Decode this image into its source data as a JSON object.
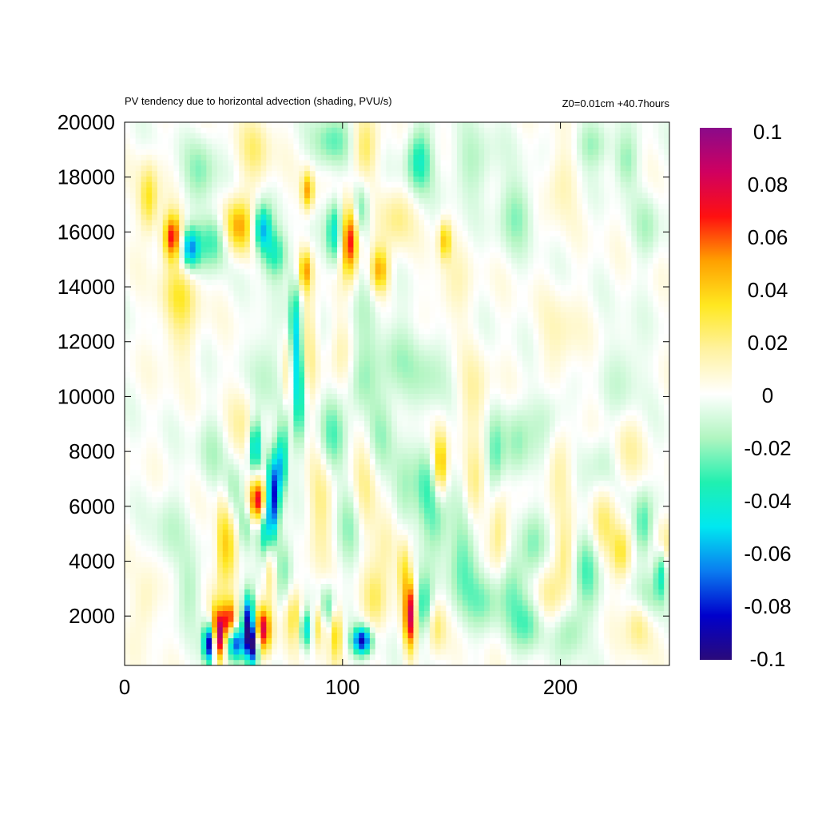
{
  "chart_data": {
    "type": "heatmap",
    "title": "PV tendency due to horizontal advection (shading, PVU/s)",
    "subtitle": "Z0=0.01cm   +40.7hours",
    "xlabel": "",
    "ylabel": "",
    "xlim": [
      0,
      250
    ],
    "ylim": [
      200,
      20000
    ],
    "x_ticks": [
      "0",
      "100",
      "200"
    ],
    "y_ticks": [
      "2000",
      "4000",
      "6000",
      "8000",
      "10000",
      "12000",
      "14000",
      "16000",
      "18000",
      "20000"
    ],
    "colorbar": {
      "range": [
        -0.1,
        0.1
      ],
      "ticks": [
        "0.1",
        "0.08",
        "0.06",
        "0.04",
        "0.02",
        "0",
        "-0.02",
        "-0.04",
        "-0.06",
        "-0.08",
        "-0.1"
      ],
      "colors": [
        "#2a0a7a",
        "#0000cc",
        "#0a7cf0",
        "#00e8f0",
        "#20f0b0",
        "#b0f5c0",
        "#ffffff",
        "#fff2a0",
        "#ffe820",
        "#ffa000",
        "#ff1010",
        "#d00060",
        "#8a0a8a"
      ]
    },
    "grid": "off",
    "features": [
      {
        "x": 11,
        "y": 17200,
        "value": 0.035,
        "sx": 3,
        "sy": 900
      },
      {
        "x": 22,
        "y": 15800,
        "value": 0.07,
        "sx": 3,
        "sy": 600
      },
      {
        "x": 30,
        "y": 15400,
        "value": -0.06,
        "sx": 3,
        "sy": 500
      },
      {
        "x": 41,
        "y": 15700,
        "value": -0.035,
        "sx": 5,
        "sy": 700
      },
      {
        "x": 52,
        "y": 16200,
        "value": 0.05,
        "sx": 5,
        "sy": 700
      },
      {
        "x": 63,
        "y": 16100,
        "value": -0.06,
        "sx": 3,
        "sy": 600
      },
      {
        "x": 69,
        "y": 15200,
        "value": -0.035,
        "sx": 4,
        "sy": 600
      },
      {
        "x": 84,
        "y": 17500,
        "value": 0.05,
        "sx": 2,
        "sy": 500
      },
      {
        "x": 83,
        "y": 14600,
        "value": 0.045,
        "sx": 2,
        "sy": 500
      },
      {
        "x": 97,
        "y": 16000,
        "value": -0.05,
        "sx": 3,
        "sy": 800
      },
      {
        "x": 103,
        "y": 15700,
        "value": 0.08,
        "sx": 3,
        "sy": 900
      },
      {
        "x": 108,
        "y": 16800,
        "value": -0.03,
        "sx": 3,
        "sy": 700
      },
      {
        "x": 117,
        "y": 14600,
        "value": 0.05,
        "sx": 3,
        "sy": 600
      },
      {
        "x": 135,
        "y": 18600,
        "value": -0.04,
        "sx": 4,
        "sy": 800
      },
      {
        "x": 147,
        "y": 15700,
        "value": 0.04,
        "sx": 2,
        "sy": 500
      },
      {
        "x": 125,
        "y": 16500,
        "value": 0.02,
        "sx": 5,
        "sy": 800
      },
      {
        "x": 60,
        "y": 19000,
        "value": 0.02,
        "sx": 5,
        "sy": 900
      },
      {
        "x": 95,
        "y": 19300,
        "value": -0.025,
        "sx": 6,
        "sy": 700
      },
      {
        "x": 110,
        "y": 19000,
        "value": 0.025,
        "sx": 4,
        "sy": 800
      },
      {
        "x": 160,
        "y": 18500,
        "value": -0.015,
        "sx": 8,
        "sy": 900
      },
      {
        "x": 180,
        "y": 16700,
        "value": -0.02,
        "sx": 6,
        "sy": 900
      },
      {
        "x": 200,
        "y": 17800,
        "value": 0.015,
        "sx": 5,
        "sy": 900
      },
      {
        "x": 230,
        "y": 18600,
        "value": -0.02,
        "sx": 4,
        "sy": 700
      },
      {
        "x": 240,
        "y": 16200,
        "value": -0.015,
        "sx": 4,
        "sy": 900
      },
      {
        "x": 215,
        "y": 19200,
        "value": -0.02,
        "sx": 6,
        "sy": 600
      },
      {
        "x": 35,
        "y": 18200,
        "value": -0.02,
        "sx": 5,
        "sy": 900
      },
      {
        "x": 80,
        "y": 10500,
        "value": -0.05,
        "sx": 2,
        "sy": 1500
      },
      {
        "x": 78,
        "y": 12500,
        "value": -0.04,
        "sx": 2,
        "sy": 1300
      },
      {
        "x": 75,
        "y": 10000,
        "value": 0.03,
        "sx": 2,
        "sy": 1600
      },
      {
        "x": 84,
        "y": 12000,
        "value": 0.02,
        "sx": 3,
        "sy": 1500
      },
      {
        "x": 74,
        "y": 8800,
        "value": -0.03,
        "sx": 2,
        "sy": 900
      },
      {
        "x": 60,
        "y": 8200,
        "value": -0.055,
        "sx": 2,
        "sy": 700
      },
      {
        "x": 61,
        "y": 6200,
        "value": 0.085,
        "sx": 3,
        "sy": 600
      },
      {
        "x": 68,
        "y": 6300,
        "value": -0.085,
        "sx": 2,
        "sy": 1100
      },
      {
        "x": 72,
        "y": 7500,
        "value": -0.05,
        "sx": 2,
        "sy": 800
      },
      {
        "x": 64,
        "y": 5200,
        "value": -0.045,
        "sx": 2,
        "sy": 700
      },
      {
        "x": 56,
        "y": 5400,
        "value": -0.03,
        "sx": 3,
        "sy": 700
      },
      {
        "x": 50,
        "y": 6500,
        "value": -0.02,
        "sx": 3,
        "sy": 800
      },
      {
        "x": 45,
        "y": 4600,
        "value": 0.04,
        "sx": 2,
        "sy": 1200
      },
      {
        "x": 49,
        "y": 4400,
        "value": 0.03,
        "sx": 2,
        "sy": 1000
      },
      {
        "x": 42,
        "y": 1500,
        "value": 0.055,
        "sx": 2,
        "sy": 700
      },
      {
        "x": 39,
        "y": 1000,
        "value": -0.1,
        "sx": 2,
        "sy": 500
      },
      {
        "x": 44,
        "y": 1200,
        "value": 0.06,
        "sx": 2,
        "sy": 600
      },
      {
        "x": 48,
        "y": 1900,
        "value": 0.065,
        "sx": 2,
        "sy": 500
      },
      {
        "x": 51,
        "y": 1000,
        "value": -0.07,
        "sx": 3,
        "sy": 400
      },
      {
        "x": 57,
        "y": 1800,
        "value": -0.1,
        "sx": 2,
        "sy": 700
      },
      {
        "x": 63,
        "y": 1500,
        "value": 0.08,
        "sx": 3,
        "sy": 600
      },
      {
        "x": 59,
        "y": 900,
        "value": -0.09,
        "sx": 2,
        "sy": 500
      },
      {
        "x": 67,
        "y": 3500,
        "value": 0.03,
        "sx": 2,
        "sy": 800
      },
      {
        "x": 73,
        "y": 3800,
        "value": -0.025,
        "sx": 3,
        "sy": 900
      },
      {
        "x": 78,
        "y": 2000,
        "value": 0.03,
        "sx": 3,
        "sy": 700
      },
      {
        "x": 83,
        "y": 1500,
        "value": -0.05,
        "sx": 2,
        "sy": 500
      },
      {
        "x": 89,
        "y": 1700,
        "value": 0.035,
        "sx": 2,
        "sy": 600
      },
      {
        "x": 97,
        "y": 1400,
        "value": 0.04,
        "sx": 2,
        "sy": 700
      },
      {
        "x": 93,
        "y": 2300,
        "value": -0.03,
        "sx": 3,
        "sy": 600
      },
      {
        "x": 109,
        "y": 1100,
        "value": -0.085,
        "sx": 3,
        "sy": 350
      },
      {
        "x": 115,
        "y": 2600,
        "value": 0.02,
        "sx": 4,
        "sy": 800
      },
      {
        "x": 131,
        "y": 2000,
        "value": 0.08,
        "sx": 2,
        "sy": 900
      },
      {
        "x": 128,
        "y": 3700,
        "value": 0.03,
        "sx": 2,
        "sy": 800
      },
      {
        "x": 137,
        "y": 2300,
        "value": -0.035,
        "sx": 3,
        "sy": 800
      },
      {
        "x": 143,
        "y": 1600,
        "value": 0.025,
        "sx": 3,
        "sy": 700
      },
      {
        "x": 145,
        "y": 7500,
        "value": 0.045,
        "sx": 2,
        "sy": 800
      },
      {
        "x": 143,
        "y": 5500,
        "value": -0.025,
        "sx": 4,
        "sy": 1000
      },
      {
        "x": 138,
        "y": 6800,
        "value": -0.02,
        "sx": 3,
        "sy": 1000
      },
      {
        "x": 128,
        "y": 6300,
        "value": -0.02,
        "sx": 4,
        "sy": 1200
      },
      {
        "x": 110,
        "y": 7000,
        "value": 0.02,
        "sx": 4,
        "sy": 1500
      },
      {
        "x": 104,
        "y": 5500,
        "value": -0.02,
        "sx": 4,
        "sy": 1200
      },
      {
        "x": 95,
        "y": 8500,
        "value": -0.025,
        "sx": 4,
        "sy": 1000
      },
      {
        "x": 90,
        "y": 6000,
        "value": 0.02,
        "sx": 4,
        "sy": 1300
      },
      {
        "x": 118,
        "y": 8800,
        "value": -0.02,
        "sx": 5,
        "sy": 1000
      },
      {
        "x": 120,
        "y": 4500,
        "value": 0.02,
        "sx": 4,
        "sy": 900
      },
      {
        "x": 155,
        "y": 4000,
        "value": -0.025,
        "sx": 5,
        "sy": 1300
      },
      {
        "x": 160,
        "y": 6600,
        "value": 0.02,
        "sx": 3,
        "sy": 1000
      },
      {
        "x": 165,
        "y": 2600,
        "value": -0.02,
        "sx": 5,
        "sy": 800
      },
      {
        "x": 172,
        "y": 5200,
        "value": 0.025,
        "sx": 3,
        "sy": 1100
      },
      {
        "x": 178,
        "y": 3000,
        "value": -0.02,
        "sx": 5,
        "sy": 900
      },
      {
        "x": 185,
        "y": 1700,
        "value": -0.025,
        "sx": 5,
        "sy": 700
      },
      {
        "x": 187,
        "y": 4600,
        "value": -0.02,
        "sx": 4,
        "sy": 900
      },
      {
        "x": 195,
        "y": 2800,
        "value": 0.02,
        "sx": 4,
        "sy": 800
      },
      {
        "x": 202,
        "y": 4200,
        "value": 0.02,
        "sx": 3,
        "sy": 900
      },
      {
        "x": 205,
        "y": 1500,
        "value": -0.02,
        "sx": 5,
        "sy": 700
      },
      {
        "x": 212,
        "y": 3600,
        "value": -0.025,
        "sx": 4,
        "sy": 1000
      },
      {
        "x": 220,
        "y": 5500,
        "value": 0.02,
        "sx": 4,
        "sy": 900
      },
      {
        "x": 228,
        "y": 4300,
        "value": 0.03,
        "sx": 3,
        "sy": 700
      },
      {
        "x": 236,
        "y": 1700,
        "value": 0.025,
        "sx": 4,
        "sy": 700
      },
      {
        "x": 240,
        "y": 2700,
        "value": -0.02,
        "sx": 4,
        "sy": 700
      },
      {
        "x": 238,
        "y": 5300,
        "value": -0.03,
        "sx": 3,
        "sy": 900
      },
      {
        "x": 246,
        "y": 3600,
        "value": -0.04,
        "sx": 2,
        "sy": 700
      },
      {
        "x": 248,
        "y": 4700,
        "value": 0.025,
        "sx": 3,
        "sy": 700
      },
      {
        "x": 230,
        "y": 8000,
        "value": 0.015,
        "sx": 5,
        "sy": 900
      },
      {
        "x": 220,
        "y": 7600,
        "value": -0.015,
        "sx": 5,
        "sy": 800
      },
      {
        "x": 200,
        "y": 7500,
        "value": 0.015,
        "sx": 4,
        "sy": 1000
      },
      {
        "x": 195,
        "y": 9300,
        "value": -0.015,
        "sx": 6,
        "sy": 800
      },
      {
        "x": 180,
        "y": 8200,
        "value": -0.02,
        "sx": 4,
        "sy": 1000
      },
      {
        "x": 170,
        "y": 7800,
        "value": -0.025,
        "sx": 3,
        "sy": 1000
      },
      {
        "x": 160,
        "y": 10000,
        "value": 0.015,
        "sx": 5,
        "sy": 1000
      },
      {
        "x": 140,
        "y": 11000,
        "value": -0.015,
        "sx": 6,
        "sy": 1000
      },
      {
        "x": 125,
        "y": 11500,
        "value": -0.015,
        "sx": 6,
        "sy": 1000
      },
      {
        "x": 108,
        "y": 10400,
        "value": -0.02,
        "sx": 5,
        "sy": 900
      },
      {
        "x": 100,
        "y": 11700,
        "value": 0.015,
        "sx": 4,
        "sy": 900
      },
      {
        "x": 65,
        "y": 11000,
        "value": -0.015,
        "sx": 5,
        "sy": 1300
      },
      {
        "x": 55,
        "y": 9000,
        "value": 0.015,
        "sx": 5,
        "sy": 1000
      },
      {
        "x": 40,
        "y": 8000,
        "value": -0.012,
        "sx": 5,
        "sy": 1000
      },
      {
        "x": 25,
        "y": 12500,
        "value": 0.015,
        "sx": 6,
        "sy": 1000
      },
      {
        "x": 25,
        "y": 13800,
        "value": 0.02,
        "sx": 6,
        "sy": 700
      },
      {
        "x": 110,
        "y": 13300,
        "value": -0.015,
        "sx": 6,
        "sy": 900
      },
      {
        "x": 150,
        "y": 13800,
        "value": 0.012,
        "sx": 6,
        "sy": 900
      },
      {
        "x": 200,
        "y": 12000,
        "value": 0.012,
        "sx": 6,
        "sy": 1200
      },
      {
        "x": 230,
        "y": 11000,
        "value": -0.012,
        "sx": 6,
        "sy": 1100
      },
      {
        "x": 10,
        "y": 2500,
        "value": 0.015,
        "sx": 4,
        "sy": 900
      },
      {
        "x": 20,
        "y": 5000,
        "value": -0.012,
        "sx": 5,
        "sy": 1100
      },
      {
        "x": 30,
        "y": 3000,
        "value": -0.015,
        "sx": 4,
        "sy": 900
      }
    ]
  }
}
